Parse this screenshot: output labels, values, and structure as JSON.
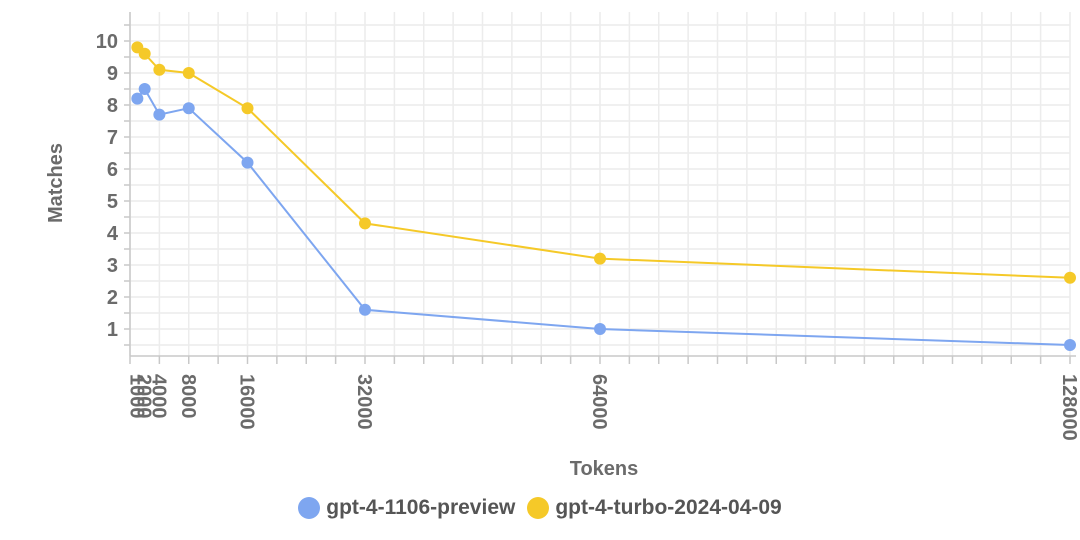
{
  "chart_data": {
    "type": "line",
    "xlabel": "Tokens",
    "ylabel": "Matches",
    "x": [
      1000,
      2000,
      4000,
      8000,
      16000,
      32000,
      64000,
      128000
    ],
    "x_tick_labels": [
      "1000",
      "2000",
      "4000",
      "8000",
      "16000",
      "32000",
      "64000",
      "128000"
    ],
    "y_ticks": [
      1,
      2,
      3,
      4,
      5,
      6,
      7,
      8,
      9,
      10
    ],
    "xlim": [
      0,
      128000
    ],
    "ylim": [
      0,
      10.5
    ],
    "grid": true,
    "legend_position": "bottom",
    "series": [
      {
        "name": "gpt-4-1106-preview",
        "color": "#7ea6f0",
        "values": [
          8.2,
          8.5,
          7.7,
          7.9,
          6.2,
          1.6,
          1.0,
          0.5
        ]
      },
      {
        "name": "gpt-4-turbo-2024-04-09",
        "color": "#f5c928",
        "values": [
          9.8,
          9.6,
          9.1,
          9.0,
          7.9,
          4.3,
          3.2,
          2.6
        ]
      }
    ]
  }
}
